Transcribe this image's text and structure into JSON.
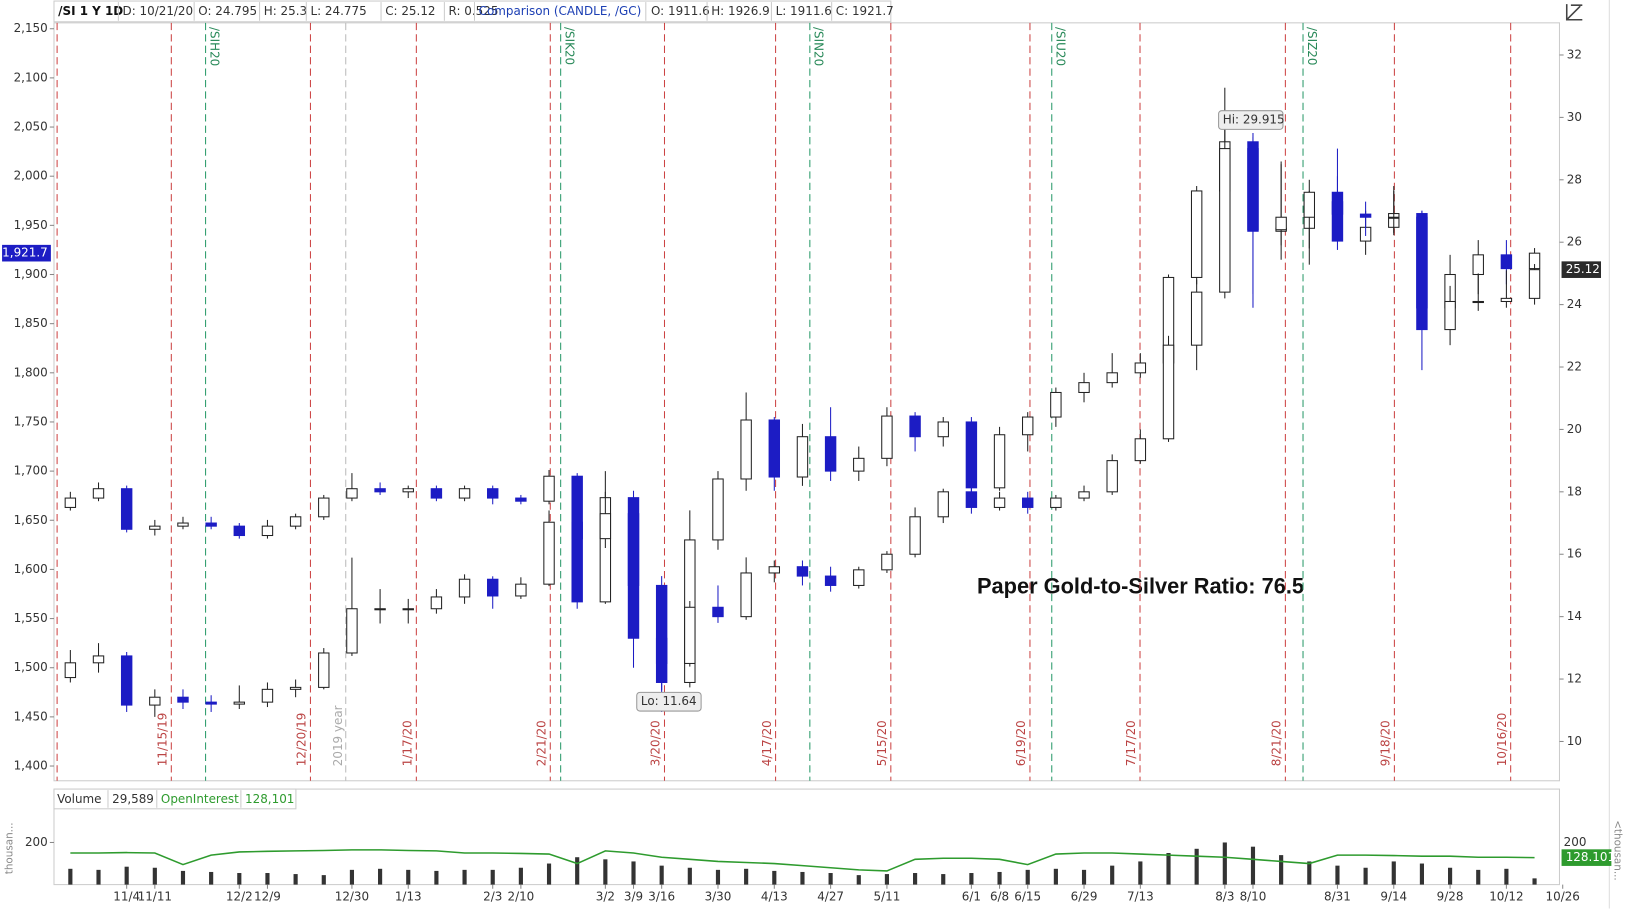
{
  "header": {
    "symbol": "/SI 1 Y 1D",
    "fields": [
      "D: 10/21/20",
      "O: 24.795",
      "H: 25.3",
      "L: 24.775",
      "C: 25.12",
      "R: 0.525"
    ],
    "comparison": "Comparison (CANDLE, /GC)",
    "comparison_fields": [
      "O: 1911.6",
      "H: 1926.9",
      "L: 1911.6",
      "C: 1921.7"
    ]
  },
  "chart_data": [
    {
      "type": "candlestick",
      "annotation": "Paper Gold-to-Silver Ratio: 76.5",
      "hi_label": "Hi: 29.915",
      "lo_label": "Lo: 11.64",
      "expiration_labels": [
        "11/15/19",
        "12/20/19",
        "1/17/20",
        "2/21/20",
        "3/20/20",
        "4/17/20",
        "5/15/20",
        "6/19/20",
        "7/17/20",
        "8/21/20",
        "9/18/20",
        "10/16/20"
      ],
      "contract_labels": [
        "/SIH20",
        "/SIK20",
        "/SIN20",
        "/SIU20",
        "/SIZ20"
      ],
      "year_label": "2019 year",
      "up_color": "#ffffff",
      "down_color": "#1c1cc4",
      "wick_color": "#222222",
      "ylim": [
        1385,
        2156
      ],
      "yticks": [
        {
          "value": 1400,
          "label": "1,400"
        },
        {
          "value": 1450,
          "label": "1,450"
        },
        {
          "value": 1500,
          "label": "1,500"
        },
        {
          "value": 1550,
          "label": "1,550"
        },
        {
          "value": 1600,
          "label": "1,600"
        },
        {
          "value": 1650,
          "label": "1,650"
        },
        {
          "value": 1700,
          "label": "1,700"
        },
        {
          "value": 1750,
          "label": "1,750"
        },
        {
          "value": 1800,
          "label": "1,800"
        },
        {
          "value": 1850,
          "label": "1,850"
        },
        {
          "value": 1900,
          "label": "1,900"
        },
        {
          "value": 1950,
          "label": "1,950"
        },
        {
          "value": 2000,
          "label": "2,000"
        },
        {
          "value": 2050,
          "label": "2,050"
        },
        {
          "value": 2100,
          "label": "2,100"
        },
        {
          "value": 2150,
          "label": "2,150"
        }
      ],
      "y2lim": [
        8.74,
        33.03
      ],
      "y2ticks": [
        10,
        12,
        14,
        16,
        18,
        20,
        22,
        24,
        26,
        28,
        30,
        32
      ],
      "series": [
        {
          "axis": "y",
          "last_label": "1,921.7",
          "last_color": "#1c1cc4",
          "open": [
            1490,
            1505,
            1512,
            1462,
            1470,
            1465,
            1463,
            1465,
            1478,
            1480,
            1515,
            1560,
            1560,
            1560,
            1572,
            1590,
            1573,
            1585,
            1648,
            1567,
            1673,
            1530,
            1485,
            1630,
            1692,
            1752,
            1694,
            1735,
            1700,
            1713,
            1756,
            1735,
            1750,
            1683,
            1737,
            1755,
            1780,
            1790,
            1800,
            1810,
            1897,
            1985,
            2035,
            1944,
            1947,
            1974,
            1934,
            1948,
            1962,
            1866,
            1900,
            1920,
            1906,
            null
          ],
          "high": [
            1518,
            1525,
            1516,
            1478,
            1478,
            1472,
            1482,
            1485,
            1488,
            1520,
            1612,
            1580,
            1570,
            1580,
            1595,
            1593,
            1592,
            1660,
            1690,
            1700,
            1680,
            1545,
            1660,
            1700,
            1780,
            1755,
            1748,
            1765,
            1725,
            1765,
            1760,
            1755,
            1755,
            1745,
            1760,
            1785,
            1800,
            1820,
            1820,
            1900,
            1990,
            2090,
            2040,
            2015,
            1985,
            2000,
            1965,
            1985,
            1965,
            1920,
            1935,
            1935,
            1926.9,
            null
          ],
          "low": [
            1485,
            1495,
            1455,
            1450,
            1458,
            1455,
            1458,
            1460,
            1470,
            1478,
            1512,
            1545,
            1545,
            1555,
            1565,
            1560,
            1570,
            1583,
            1560,
            1565,
            1500,
            1455,
            1480,
            1620,
            1680,
            1680,
            1685,
            1690,
            1690,
            1705,
            1720,
            1725,
            1670,
            1680,
            1720,
            1745,
            1770,
            1785,
            1795,
            1805,
            1890,
            1980,
            1880,
            1915,
            1910,
            1925,
            1920,
            1940,
            1855,
            1860,
            1880,
            1890,
            1900,
            null
          ],
          "close": [
            1505,
            1512,
            1462,
            1470,
            1465,
            1463,
            1465,
            1478,
            1480,
            1515,
            1560,
            1560,
            1560,
            1572,
            1590,
            1573,
            1585,
            1648,
            1567,
            1673,
            1530,
            1485,
            1630,
            1692,
            1752,
            1694,
            1735,
            1700,
            1713,
            1756,
            1735,
            1750,
            1683,
            1737,
            1755,
            1780,
            1790,
            1800,
            1810,
            1897,
            1985,
            2035,
            1944,
            1947,
            1974,
            1934,
            1948,
            1962,
            1866,
            1900,
            1920,
            1906,
            1921.7,
            null
          ]
        },
        {
          "axis": "y2",
          "last_color": "#2b2b2b",
          "open": [
            17.5,
            17.8,
            18.1,
            16.8,
            16.9,
            17.0,
            16.9,
            16.6,
            16.9,
            17.2,
            17.8,
            18.1,
            18.0,
            18.1,
            17.8,
            18.1,
            17.8,
            17.7,
            18.5,
            16.5,
            17.3,
            15.0,
            12.5,
            14.3,
            14.0,
            15.4,
            15.6,
            15.3,
            15.0,
            15.5,
            16.0,
            17.2,
            18.0,
            17.5,
            17.8,
            17.5,
            17.8,
            18.0,
            19.0,
            19.7,
            22.7,
            24.4,
            29.0,
            26.4,
            26.8,
            27.6,
            26.9,
            26.8,
            26.8,
            23.2,
            24.1,
            24.1,
            24.2,
            null
          ],
          "high": [
            18.0,
            18.3,
            18.2,
            17.1,
            17.2,
            17.2,
            17.0,
            17.1,
            17.3,
            17.9,
            18.6,
            18.3,
            18.2,
            18.2,
            18.2,
            18.2,
            17.9,
            18.7,
            18.6,
            18.0,
            17.6,
            15.3,
            14.5,
            15.0,
            15.9,
            15.8,
            15.8,
            15.6,
            15.6,
            16.1,
            17.5,
            18.1,
            18.2,
            18.0,
            18.0,
            17.9,
            18.2,
            19.2,
            20.0,
            23.0,
            24.8,
            29.915,
            29.5,
            28.5,
            28.0,
            29.0,
            27.3,
            27.8,
            27.0,
            24.6,
            25.0,
            25.1,
            25.3,
            null
          ],
          "low": [
            17.4,
            17.7,
            16.7,
            16.6,
            16.8,
            16.8,
            16.5,
            16.5,
            16.8,
            17.1,
            17.7,
            17.9,
            17.8,
            17.7,
            17.7,
            17.6,
            17.6,
            17.6,
            16.3,
            16.2,
            14.8,
            11.64,
            12.4,
            13.8,
            13.9,
            15.1,
            15.0,
            14.8,
            14.9,
            15.4,
            15.9,
            17.0,
            17.3,
            17.4,
            17.3,
            17.4,
            17.7,
            17.9,
            18.9,
            19.6,
            21.9,
            24.2,
            23.9,
            25.9,
            25.8,
            26.5,
            26.2,
            26.3,
            21.9,
            22.7,
            23.8,
            23.9,
            24.0,
            null
          ],
          "close": [
            17.8,
            18.1,
            16.8,
            16.9,
            17.0,
            16.9,
            16.6,
            16.9,
            17.2,
            17.8,
            18.1,
            18.0,
            18.1,
            17.8,
            18.1,
            17.8,
            17.7,
            18.5,
            16.5,
            17.3,
            15.0,
            12.5,
            14.3,
            14.0,
            15.4,
            15.6,
            15.3,
            15.0,
            15.5,
            16.0,
            17.2,
            18.0,
            17.5,
            17.8,
            17.5,
            17.8,
            18.0,
            19.0,
            19.7,
            22.7,
            24.4,
            29.0,
            26.4,
            26.8,
            27.6,
            26.9,
            26.8,
            26.8,
            23.2,
            24.1,
            24.1,
            24.2,
            25.12,
            null
          ]
        }
      ]
    },
    {
      "type": "bar",
      "categories": [
        null,
        null,
        "11/4",
        "11/11",
        null,
        null,
        "12/2",
        "12/9",
        null,
        null,
        "12/30",
        null,
        "1/13",
        null,
        null,
        "2/3",
        "2/10",
        null,
        null,
        "3/2",
        "3/9",
        "3/16",
        null,
        "3/30",
        null,
        "4/13",
        null,
        "4/27",
        null,
        "5/11",
        null,
        null,
        "6/1",
        "6/8",
        "6/15",
        null,
        "6/29",
        null,
        "7/13",
        null,
        null,
        "8/3",
        "8/10",
        null,
        null,
        "8/31",
        null,
        "9/14",
        null,
        "9/28",
        null,
        "10/12",
        null,
        "10/26"
      ],
      "ylim": [
        0,
        350
      ],
      "yticks": [
        200
      ],
      "unit_label_left": "thousan...",
      "unit_label_right": "<thousan...",
      "series": [
        {
          "name": "Volume",
          "kind": "bar",
          "color": "#333333",
          "legend_value": "29,589",
          "values": [
            75,
            70,
            85,
            80,
            65,
            60,
            55,
            55,
            50,
            45,
            70,
            75,
            70,
            65,
            70,
            70,
            80,
            100,
            130,
            120,
            110,
            90,
            80,
            70,
            75,
            65,
            60,
            55,
            45,
            50,
            55,
            50,
            55,
            60,
            70,
            75,
            70,
            90,
            110,
            150,
            170,
            200,
            180,
            140,
            110,
            90,
            80,
            110,
            100,
            80,
            70,
            75,
            29.589,
            null
          ]
        },
        {
          "name": "OpenInterest",
          "kind": "line",
          "color": "#2e9b2e",
          "legend_value": "128,101",
          "last_label": "128.101",
          "values": [
            150,
            150,
            152,
            150,
            95,
            140,
            155,
            158,
            160,
            162,
            165,
            165,
            162,
            160,
            150,
            150,
            148,
            145,
            100,
            160,
            150,
            130,
            120,
            110,
            105,
            100,
            90,
            80,
            70,
            65,
            120,
            125,
            125,
            120,
            95,
            145,
            150,
            150,
            145,
            140,
            135,
            130,
            120,
            110,
            100,
            140,
            140,
            138,
            135,
            135,
            130,
            130,
            128.101,
            null
          ]
        }
      ]
    }
  ]
}
